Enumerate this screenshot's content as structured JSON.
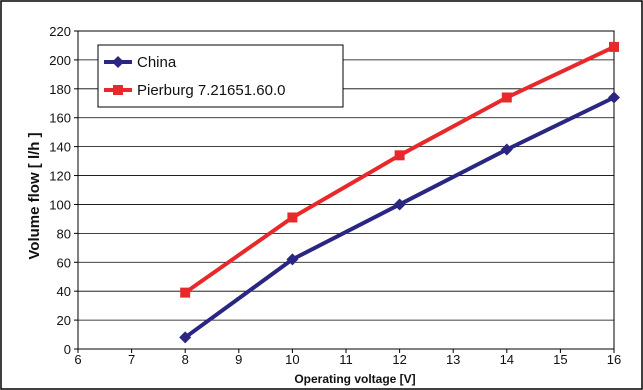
{
  "chart_data": {
    "type": "line",
    "xlabel": "Operating voltage   [V]",
    "ylabel": "Volume flow  [ l/h ]",
    "xlim": [
      6,
      16
    ],
    "ylim": [
      0,
      220
    ],
    "xticks": [
      6,
      7,
      8,
      9,
      10,
      11,
      12,
      13,
      14,
      15,
      16
    ],
    "yticks": [
      0,
      20,
      40,
      60,
      80,
      100,
      120,
      140,
      160,
      180,
      200,
      220
    ],
    "grid": "horizontal",
    "legend_position": "top-left",
    "series": [
      {
        "name": "China",
        "color": "#2a2682",
        "marker": "diamond",
        "x": [
          8,
          10,
          12,
          14,
          16
        ],
        "y": [
          8,
          62,
          100,
          138,
          174
        ]
      },
      {
        "name": "Pierburg 7.21651.60.0",
        "color": "#e8292b",
        "marker": "square",
        "x": [
          8,
          10,
          12,
          14,
          16
        ],
        "y": [
          39,
          91,
          134,
          174,
          209
        ]
      }
    ]
  }
}
